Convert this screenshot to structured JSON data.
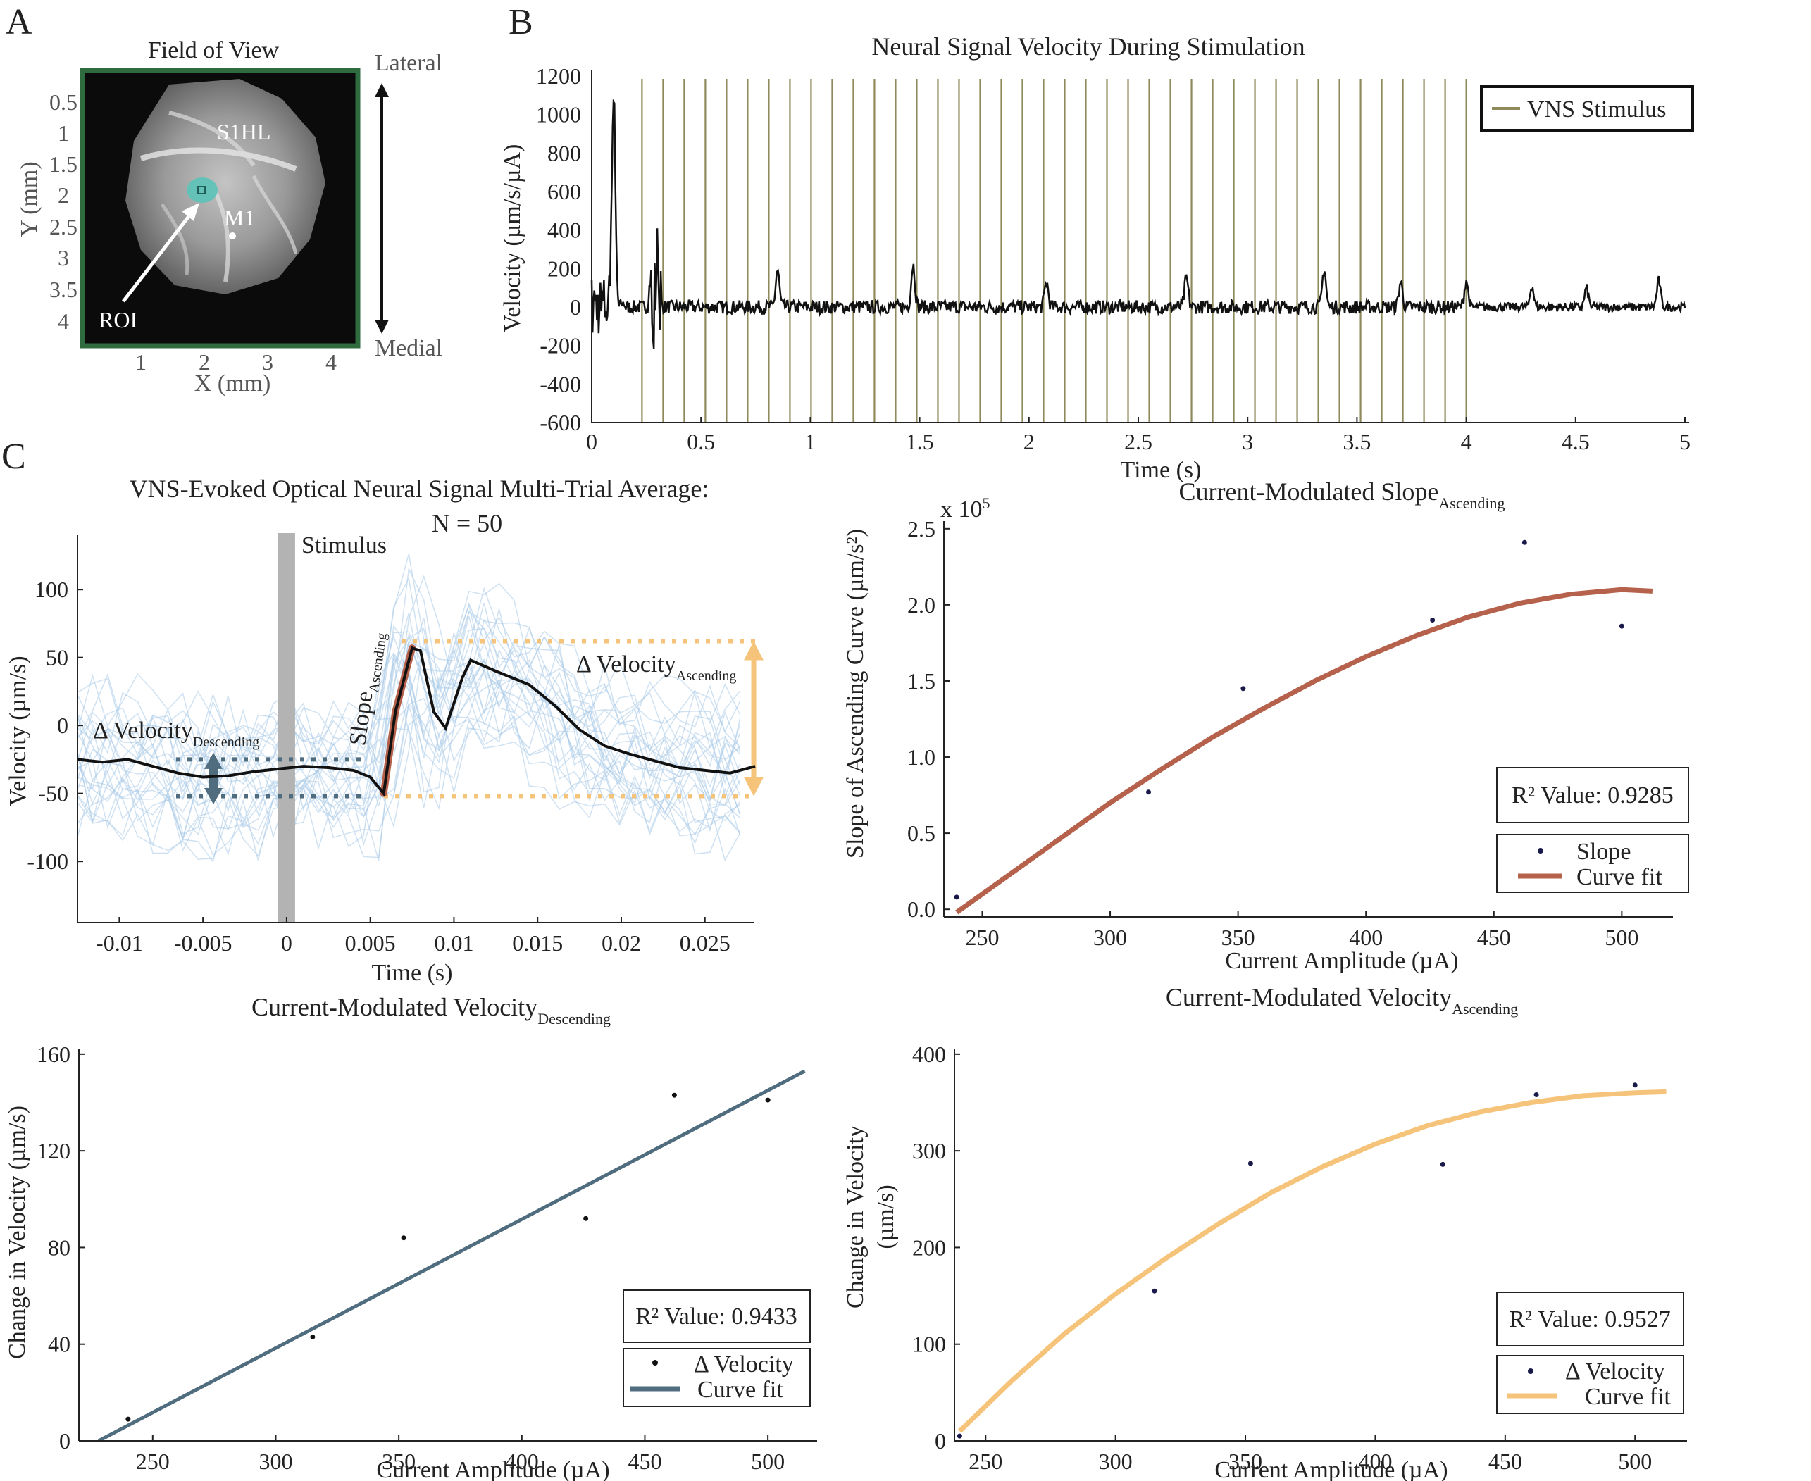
{
  "panel_letters": [
    "A",
    "B",
    "C"
  ],
  "panelA": {
    "title": "Field of View",
    "xlabel": "X (mm)",
    "ylabel": "Y (mm)",
    "xticks": [
      "1",
      "2",
      "3",
      "4"
    ],
    "yticks": [
      "0.5",
      "1",
      "1.5",
      "2",
      "2.5",
      "3",
      "3.5",
      "4"
    ],
    "labels": {
      "s1hl": "S1HL",
      "m1": "M1",
      "roi": "ROI"
    },
    "axis_top": "Lateral",
    "axis_bottom": "Medial",
    "border_color": "#2e6b3f",
    "roi_color": "#5fc2b8"
  },
  "chart_data": [
    {
      "id": "B",
      "type": "line",
      "title": "Neural Signal Velocity During Stimulation",
      "xlabel": "Time (s)",
      "ylabel": "Velocity (µm/s/µA)",
      "xlim": [
        0,
        5
      ],
      "ylim": [
        -600,
        1200
      ],
      "xticks": [
        "0",
        "0.5",
        "1",
        "1.5",
        "2",
        "2.5",
        "3",
        "3.5",
        "4",
        "4.5",
        "5"
      ],
      "yticks": [
        "1200",
        "1000",
        "800",
        "600",
        "400",
        "200",
        "0",
        "-200",
        "-400",
        "-600"
      ],
      "legend": "VNS Stimulus",
      "stim_color": "#8f8a5c",
      "stim_start": 0.23,
      "stim_end": 4.0,
      "stim_count": 40,
      "peaks": [
        {
          "t": 0.1,
          "v": 1100
        },
        {
          "t": 0.3,
          "v": 340
        },
        {
          "t": 0.85,
          "v": 190
        },
        {
          "t": 1.47,
          "v": 220
        },
        {
          "t": 2.08,
          "v": 130
        },
        {
          "t": 2.72,
          "v": 150
        },
        {
          "t": 3.35,
          "v": 200
        },
        {
          "t": 3.7,
          "v": 130
        },
        {
          "t": 4.0,
          "v": 140
        },
        {
          "t": 4.3,
          "v": 110
        },
        {
          "t": 4.55,
          "v": 100
        },
        {
          "t": 4.88,
          "v": 140
        }
      ]
    },
    {
      "id": "C-avg",
      "type": "line",
      "title": "VNS-Evoked Optical Neural Signal Multi-Trial Average:",
      "subtitle": "N = 50",
      "xlabel": "Time (s)",
      "ylabel": "Velocity (µm/s)",
      "xlim": [
        -0.0125,
        0.028
      ],
      "ylim": [
        -145,
        140
      ],
      "xticks": [
        "-0.01",
        "-0.005",
        "0",
        "0.005",
        "0.01",
        "0.015",
        "0.02",
        "0.025"
      ],
      "yticks": [
        "100",
        "50",
        "0",
        "-50",
        "-100"
      ],
      "stimulus_label": "Stimulus",
      "slope_label": "Slope",
      "slope_sub": "Ascending",
      "dv_desc_label": "Δ Velocity",
      "dv_desc_sub": "Descending",
      "dv_asc_label": "Δ Velocity",
      "dv_asc_sub": "Ascending",
      "avg_x": [
        -0.0125,
        -0.011,
        -0.0095,
        -0.008,
        -0.0065,
        -0.005,
        -0.0035,
        -0.002,
        -0.0005,
        0.001,
        0.0025,
        0.004,
        0.005,
        0.0058,
        0.0065,
        0.0075,
        0.008,
        0.0088,
        0.0095,
        0.0105,
        0.011,
        0.0125,
        0.0145,
        0.016,
        0.0175,
        0.019,
        0.0205,
        0.022,
        0.0235,
        0.025,
        0.0265,
        0.028
      ],
      "avg_y": [
        -25,
        -27,
        -25,
        -30,
        -35,
        -38,
        -37,
        -34,
        -32,
        -30,
        -31,
        -33,
        -38,
        -50,
        10,
        57,
        55,
        10,
        -2,
        35,
        48,
        40,
        30,
        15,
        -3,
        -15,
        -21,
        -26,
        -31,
        -33,
        -35,
        -30
      ],
      "colors": {
        "avg": "#111111",
        "trials": "#a9cbe8",
        "slope": "#b5614b",
        "desc": "#4f6d7e",
        "asc": "#f5c47a",
        "stim": "#b3b3b3"
      }
    },
    {
      "id": "C-slope",
      "type": "scatter",
      "title": "Current-Modulated Slope",
      "title_sub": "Ascending",
      "xlabel": "Current Amplitude (µA)",
      "ylabel": "Slope of Ascending Curve (µm/s²)",
      "exponent_label": "x 10",
      "exponent": "5",
      "xlim": [
        235,
        520
      ],
      "ylim": [
        -0.05,
        2.55
      ],
      "xticks": [
        "250",
        "300",
        "350",
        "400",
        "450",
        "500"
      ],
      "yticks": [
        "2.5",
        "2.0",
        "1.5",
        "1.0",
        "0.5",
        "0.0"
      ],
      "points_x": [
        240,
        315,
        352,
        426,
        462,
        500
      ],
      "points_y": [
        0.08,
        0.77,
        1.45,
        1.9,
        2.41,
        1.86
      ],
      "fit_x": [
        240,
        260,
        280,
        300,
        320,
        340,
        360,
        380,
        400,
        420,
        440,
        460,
        480,
        500,
        512
      ],
      "fit_y": [
        -0.02,
        0.22,
        0.46,
        0.7,
        0.92,
        1.13,
        1.32,
        1.5,
        1.66,
        1.8,
        1.92,
        2.01,
        2.07,
        2.1,
        2.09
      ],
      "r2_label": "R² Value: 0.9285",
      "legend_points": "Slope",
      "legend_fit": "Curve fit",
      "fit_color": "#b5614b"
    },
    {
      "id": "C-vdesc",
      "type": "scatter",
      "title": "Current-Modulated Velocity",
      "title_sub": "Descending",
      "xlabel": "Current Amplitude (µA)",
      "ylabel": "Change in Velocity (µm/s)",
      "xlim": [
        220,
        520
      ],
      "ylim": [
        0,
        162
      ],
      "xticks": [
        "250",
        "300",
        "350",
        "400",
        "450",
        "500"
      ],
      "yticks": [
        "160",
        "120",
        "80",
        "40",
        "0"
      ],
      "points_x": [
        240,
        315,
        352,
        426,
        462,
        500
      ],
      "points_y": [
        9,
        43,
        84,
        92,
        143,
        141
      ],
      "fit_x": [
        228,
        515
      ],
      "fit_y": [
        0,
        153
      ],
      "r2_label": "R² Value: 0.9433",
      "legend_points": "Δ Velocity",
      "legend_fit": "Curve fit",
      "fit_color": "#4f6d7e"
    },
    {
      "id": "C-vasc",
      "type": "scatter",
      "title": "Current-Modulated Velocity",
      "title_sub": "Ascending",
      "xlabel": "Current Amplitude (µA)",
      "ylabel": "Change in Velocity (µm/s)",
      "xlim": [
        238,
        520
      ],
      "ylim": [
        0,
        405
      ],
      "xticks": [
        "250",
        "300",
        "350",
        "400",
        "450",
        "500"
      ],
      "yticks": [
        "400",
        "300",
        "200",
        "100",
        "0"
      ],
      "points_x": [
        240,
        315,
        352,
        426,
        462,
        500
      ],
      "points_y": [
        5,
        155,
        287,
        286,
        358,
        368
      ],
      "fit_x": [
        240,
        260,
        280,
        300,
        320,
        340,
        360,
        380,
        400,
        420,
        440,
        460,
        480,
        500,
        512
      ],
      "fit_y": [
        10,
        62,
        110,
        152,
        190,
        225,
        257,
        284,
        307,
        326,
        340,
        350,
        357,
        360,
        361
      ],
      "r2_label": "R² Value: 0.9527",
      "legend_points": "Δ Velocity",
      "legend_fit": "Curve fit",
      "fit_color": "#f5c47a"
    }
  ]
}
